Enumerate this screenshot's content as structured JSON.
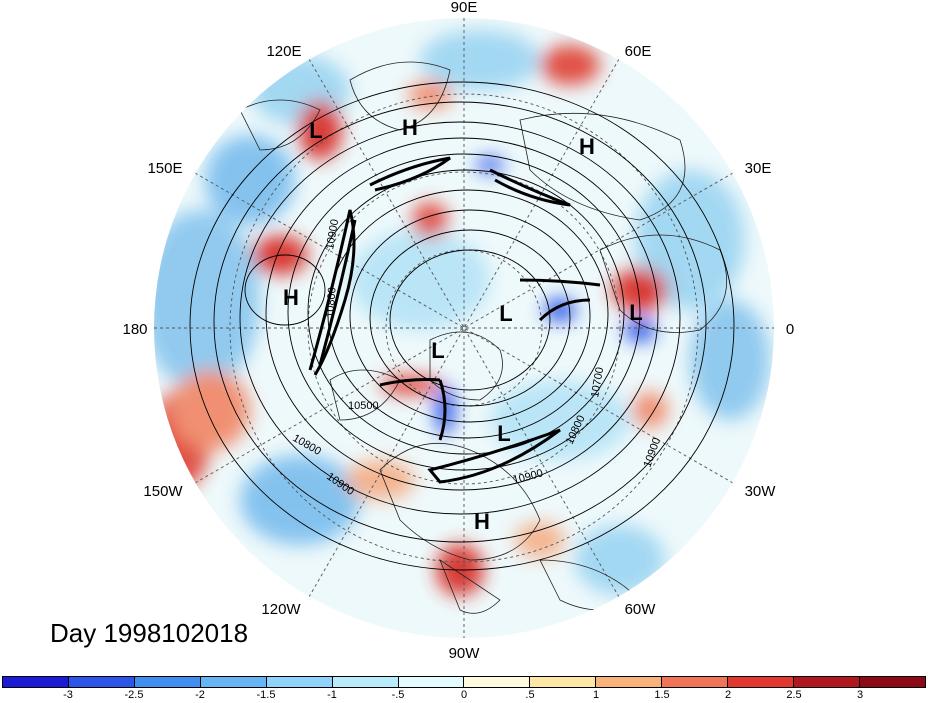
{
  "title": "Day 1998102018",
  "map": {
    "projection": "polar-stereographic",
    "hemisphere": "north",
    "longitude_labels": [
      "90E",
      "60E",
      "30E",
      "0",
      "30W",
      "60W",
      "90W",
      "120W",
      "150W",
      "180",
      "150E",
      "120E"
    ],
    "contour_labels": [
      "10900",
      "10800",
      "10500",
      "10700",
      "10800",
      "10900",
      "10800",
      "10900",
      "10900"
    ],
    "pressure_centers": [
      "L",
      "H",
      "H",
      "H",
      "L",
      "L",
      "L",
      "L",
      "H"
    ]
  },
  "colorbar": {
    "tick_labels": [
      "-3",
      "-2.5",
      "-2",
      "-1.5",
      "-1",
      "-.5",
      "0",
      ".5",
      "1",
      "1.5",
      "2",
      "2.5",
      "3"
    ],
    "colors": [
      "#1b1bd6",
      "#2a55e8",
      "#3f8ef0",
      "#67b4f5",
      "#8fd2fa",
      "#b8ecfc",
      "#e2fbfe",
      "#fefadf",
      "#fde6a6",
      "#f8b27b",
      "#f07558",
      "#e2372f",
      "#b1171f",
      "#8b0a16"
    ]
  }
}
